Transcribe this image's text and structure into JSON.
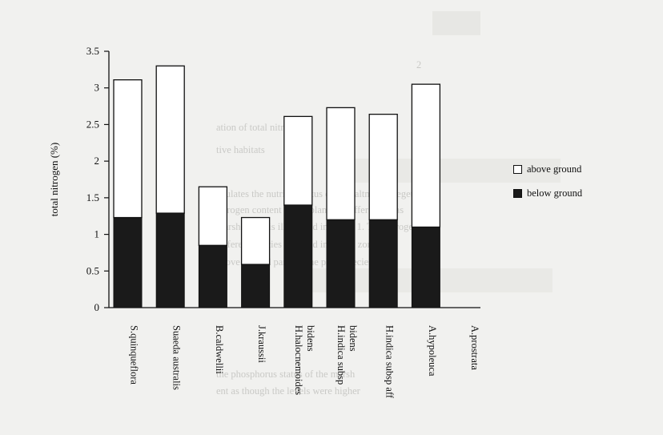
{
  "chart_data": {
    "type": "bar",
    "stacked": true,
    "ylabel": "total nitrogen (%)",
    "xlabel": "",
    "ylim": [
      0,
      3.5
    ],
    "yticks": [
      "0",
      "0.5",
      "1",
      "1.5",
      "2",
      "2.5",
      "3",
      "3.5"
    ],
    "grid": false,
    "legend_position": "right",
    "categories": [
      [
        "S.quinqueflora"
      ],
      [
        "Suaeda australis"
      ],
      [
        "B.caldwellii"
      ],
      [
        "J.kraussii"
      ],
      [
        "H.halocnemoides",
        "bidens"
      ],
      [
        "H.indica subsp",
        "bidens"
      ],
      [
        "H.indica subsp aff"
      ],
      [
        "A.hypoleuca"
      ],
      [
        "A.prostrata"
      ]
    ],
    "series": [
      {
        "name": "below ground",
        "color": "#1a1a1a",
        "values": [
          1.23,
          1.29,
          0.85,
          0.59,
          1.4,
          1.2,
          1.2,
          1.1,
          null
        ]
      },
      {
        "name": "above ground",
        "color": "#ffffff",
        "values": [
          1.88,
          2.01,
          0.8,
          0.64,
          1.21,
          1.53,
          1.44,
          1.95,
          null
        ]
      }
    ],
    "totals": [
      3.11,
      3.3,
      1.65,
      1.23,
      2.61,
      2.73,
      2.64,
      3.05,
      null
    ]
  },
  "colors": {
    "background": "#f1f1ef",
    "axis": "#111111",
    "below": "#1a1a1a",
    "above": "#ffffff"
  }
}
